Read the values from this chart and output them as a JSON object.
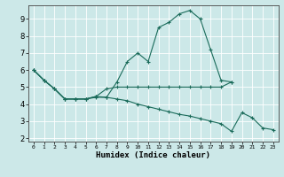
{
  "xlabel": "Humidex (Indice chaleur)",
  "bg_color": "#cce8e8",
  "grid_color": "#ffffff",
  "line_color": "#1a6b5a",
  "xlim": [
    -0.5,
    23.5
  ],
  "ylim": [
    1.8,
    9.8
  ],
  "series1_x": [
    0,
    1,
    2,
    3,
    4,
    5,
    6,
    7,
    8,
    9,
    10,
    11,
    12,
    13,
    14,
    15,
    16,
    17,
    18,
    19
  ],
  "series1_y": [
    6.0,
    5.4,
    4.9,
    4.3,
    4.3,
    4.3,
    4.4,
    4.4,
    5.3,
    6.5,
    7.0,
    6.5,
    8.5,
    8.8,
    9.3,
    9.5,
    9.0,
    7.2,
    5.4,
    5.3
  ],
  "series2_x": [
    0,
    1,
    2,
    3,
    4,
    5,
    6,
    7,
    8,
    9,
    10,
    11,
    12,
    13,
    14,
    15,
    16,
    17,
    18,
    19
  ],
  "series2_y": [
    6.0,
    5.4,
    4.9,
    4.3,
    4.3,
    4.3,
    4.45,
    4.9,
    5.0,
    5.0,
    5.0,
    5.0,
    5.0,
    5.0,
    5.0,
    5.0,
    5.0,
    5.0,
    5.0,
    5.3
  ],
  "series3_x": [
    0,
    1,
    2,
    3,
    4,
    5,
    6,
    7,
    8,
    9,
    10,
    11,
    12,
    13,
    14,
    15,
    16,
    17,
    18,
    19,
    20,
    21,
    22,
    23
  ],
  "series3_y": [
    6.0,
    5.4,
    4.9,
    4.3,
    4.3,
    4.3,
    4.45,
    4.4,
    4.3,
    4.2,
    4.0,
    3.85,
    3.7,
    3.55,
    3.4,
    3.3,
    3.15,
    3.0,
    2.85,
    2.4,
    3.5,
    3.2,
    2.6,
    2.5
  ]
}
